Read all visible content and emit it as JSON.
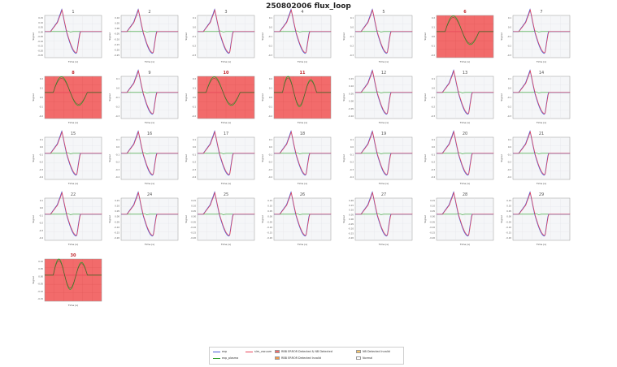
{
  "title": "250802006 flux_loop",
  "xlabel": "Time (s)",
  "ylabel": "Signal",
  "colors": {
    "exp": "#4a5bd6",
    "exp_plasma": "#2ea02c",
    "sim": "#e8455a",
    "error_detected": "#f26b6b",
    "normal_bg": "#f5f6f8",
    "border_normal": "#9a9a9a"
  },
  "chart_data": {
    "type": "line",
    "grid": true,
    "panels": [
      {
        "label": "1",
        "status": "normal",
        "yticks": [
          "0.15",
          "0.10",
          "0.05",
          "0.00",
          "-0.05",
          "-0.10",
          "-0.15",
          "-0.20",
          "-0.25"
        ]
      },
      {
        "label": "2",
        "status": "normal",
        "yticks": [
          "0.10",
          "0.05",
          "0.00",
          "-0.05",
          "-0.10",
          "-0.15",
          "-0.20",
          "-0.25"
        ]
      },
      {
        "label": "3",
        "status": "normal",
        "yticks": [
          "0.1",
          "0.0",
          "-0.1",
          "-0.2",
          "-0.3"
        ]
      },
      {
        "label": "4",
        "status": "normal",
        "yticks": [
          "0.1",
          "0.0",
          "-0.1",
          "-0.2",
          "-0.3"
        ]
      },
      {
        "label": "5",
        "status": "normal",
        "yticks": [
          "0.1",
          "0.0",
          "-0.1",
          "-0.2",
          "-0.3"
        ]
      },
      {
        "label": "6",
        "status": "error",
        "yticks": [
          "0.2",
          "0.1",
          "0.0",
          "-0.1",
          "-0.2"
        ]
      },
      {
        "label": "7",
        "status": "normal",
        "yticks": [
          "0.1",
          "0.0",
          "-0.1",
          "-0.2",
          "-0.3"
        ]
      },
      {
        "label": "8",
        "status": "error",
        "yticks": [
          "0.2",
          "0.1",
          "0.0",
          "-0.1",
          "-0.2"
        ]
      },
      {
        "label": "9",
        "status": "normal",
        "yticks": [
          "0.1",
          "0.0",
          "-0.1",
          "-0.2",
          "-0.3"
        ]
      },
      {
        "label": "10",
        "status": "error",
        "yticks": [
          "0.2",
          "0.1",
          "0.0",
          "-0.1",
          "-0.2"
        ]
      },
      {
        "label": "11",
        "status": "error",
        "yticks": [
          "0.2",
          "0.1",
          "0.0",
          "-0.1",
          "-0.2"
        ]
      },
      {
        "label": "12",
        "status": "normal",
        "yticks": [
          "0.15",
          "0.10",
          "0.05",
          "0.00",
          "-0.05",
          "-0.10"
        ]
      },
      {
        "label": "13",
        "status": "normal",
        "yticks": [
          "0.1",
          "0.0",
          "-0.1",
          "-0.2",
          "-0.3"
        ]
      },
      {
        "label": "14",
        "status": "normal",
        "yticks": [
          "0.1",
          "0.0",
          "-0.1",
          "-0.2",
          "-0.3"
        ]
      },
      {
        "label": "15",
        "status": "normal",
        "yticks": [
          "0.1",
          "0.0",
          "-0.1",
          "-0.2",
          "-0.3",
          "-0.4"
        ]
      },
      {
        "label": "16",
        "status": "normal",
        "yticks": [
          "0.1",
          "0.0",
          "-0.1",
          "-0.2",
          "-0.3",
          "-0.4"
        ]
      },
      {
        "label": "17",
        "status": "normal",
        "yticks": [
          "0.1",
          "0.0",
          "-0.1",
          "-0.2",
          "-0.3",
          "-0.4"
        ]
      },
      {
        "label": "18",
        "status": "normal",
        "yticks": [
          "0.1",
          "0.0",
          "-0.1",
          "-0.2",
          "-0.3",
          "-0.4"
        ]
      },
      {
        "label": "19",
        "status": "normal",
        "yticks": [
          "0.1",
          "0.0",
          "-0.1",
          "-0.2",
          "-0.3",
          "-0.4"
        ]
      },
      {
        "label": "20",
        "status": "normal",
        "yticks": [
          "0.1",
          "0.0",
          "-0.1",
          "-0.2",
          "-0.3",
          "-0.4"
        ]
      },
      {
        "label": "21",
        "status": "normal",
        "yticks": [
          "0.1",
          "0.0",
          "-0.1",
          "-0.2",
          "-0.3",
          "-0.4"
        ]
      },
      {
        "label": "22",
        "status": "normal",
        "yticks": [
          "0.1",
          "0.0",
          "-0.1",
          "-0.2",
          "-0.3",
          "-0.4"
        ]
      },
      {
        "label": "24",
        "status": "normal",
        "yticks": [
          "0.15",
          "0.10",
          "0.05",
          "0.00",
          "-0.05",
          "-0.10",
          "-0.15",
          "-0.20"
        ]
      },
      {
        "label": "25",
        "status": "normal",
        "yticks": [
          "0.15",
          "0.10",
          "0.05",
          "0.00",
          "-0.05",
          "-0.10",
          "-0.15",
          "-0.20"
        ]
      },
      {
        "label": "26",
        "status": "normal",
        "yticks": [
          "0.15",
          "0.10",
          "0.05",
          "0.00",
          "-0.05",
          "-0.10",
          "-0.15",
          "-0.20"
        ]
      },
      {
        "label": "27",
        "status": "normal",
        "yticks": [
          "0.20",
          "0.15",
          "0.10",
          "0.05",
          "0.00",
          "-0.05",
          "-0.10",
          "-0.15",
          "-0.20"
        ]
      },
      {
        "label": "28",
        "status": "normal",
        "yticks": [
          "0.15",
          "0.10",
          "0.05",
          "0.00",
          "-0.05",
          "-0.10",
          "-0.15",
          "-0.20"
        ]
      },
      {
        "label": "29",
        "status": "normal",
        "yticks": [
          "0.15",
          "0.10",
          "0.05",
          "0.00",
          "-0.05",
          "-0.10",
          "-0.15",
          "-0.20"
        ]
      },
      {
        "label": "30",
        "status": "error",
        "yticks": [
          "0.10",
          "0.05",
          "0.00",
          "-0.05",
          "-0.10",
          "-0.15"
        ]
      }
    ],
    "legend": [
      {
        "label": "exp",
        "kind": "line",
        "color": "#4a5bd6"
      },
      {
        "label": "exp_plasma",
        "kind": "line",
        "color": "#2ea02c"
      },
      {
        "label": "sim_vacuum",
        "kind": "line",
        "color": "#e8455a"
      },
      {
        "label": "RBB ERROR Detected & NB Detected",
        "kind": "box",
        "color": "#f26b6b"
      },
      {
        "label": "RBB ERROR Detected Invalid",
        "kind": "box",
        "color": "#f2994a"
      },
      {
        "label": "NB Detected Invalid",
        "kind": "box",
        "color": "#f5c46b"
      },
      {
        "label": "Normal",
        "kind": "box",
        "color": "#ffffff"
      }
    ]
  }
}
